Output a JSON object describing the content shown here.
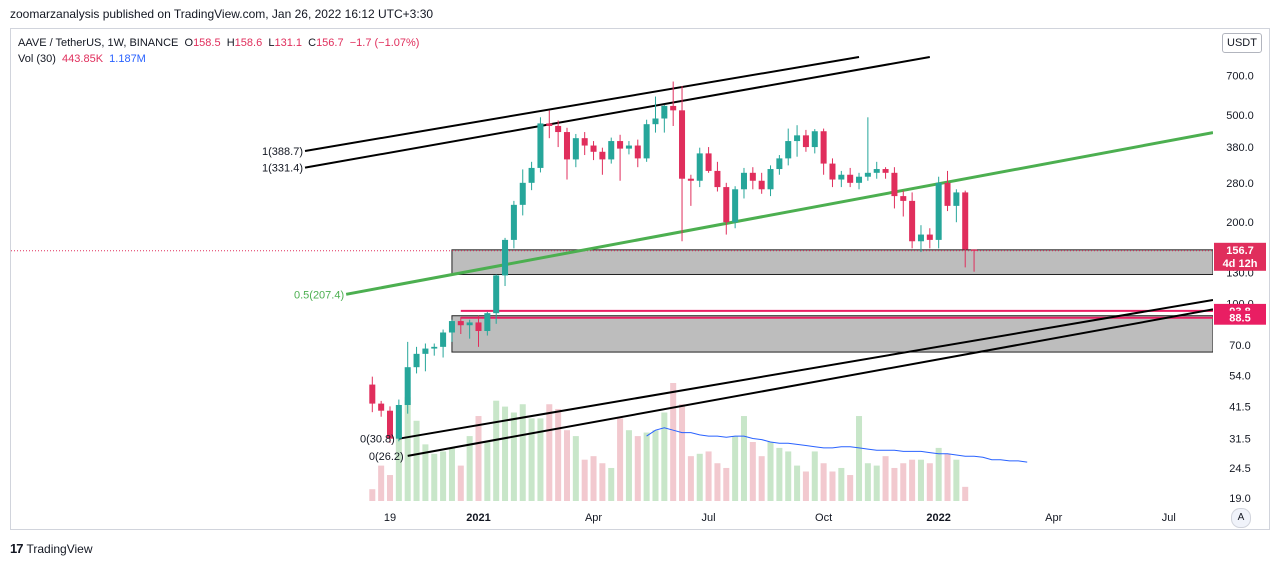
{
  "header": {
    "published": "zoomarzanalysis published on TradingView.com, Jan 26, 2022 16:12 UTC+3:30"
  },
  "legend": {
    "symbol": "AAVE / TetherUS, 1W, BINANCE",
    "open_label": "O",
    "open": "158.5",
    "high_label": "H",
    "high": "158.6",
    "low_label": "L",
    "low": "131.1",
    "close_label": "C",
    "close": "156.7",
    "change": "−1.7 (−1.07%)",
    "vol_label": "Vol (30)",
    "vol": "443.85K",
    "vol_ma": "1.187M"
  },
  "currency_badge": "USDT",
  "auto_button": "A",
  "footer": {
    "brand": "TradingView",
    "logo_glyph": "17"
  },
  "colors": {
    "up": "#26a69a",
    "down": "#e02e5c",
    "vol_up": "#c8e6c9",
    "vol_down": "#f2c9cf",
    "trend": "#4caf50",
    "zone": "#b2b2b2",
    "level": "#e91e63",
    "vol_ma": "#2962ff"
  },
  "chart_data": {
    "type": "candlestick",
    "scale": "log",
    "ylim": [
      18.5,
      820
    ],
    "x_dates": [
      "2020-10-26",
      "2022-08-08"
    ],
    "x_ticks": [
      {
        "label": "19",
        "date": "2020-10-26"
      },
      {
        "label": "2021",
        "date": "2021-01-04"
      },
      {
        "label": "Apr",
        "date": "2021-04-05"
      },
      {
        "label": "Jul",
        "date": "2021-07-05"
      },
      {
        "label": "Oct",
        "date": "2021-10-04"
      },
      {
        "label": "2022",
        "date": "2022-01-03"
      },
      {
        "label": "Apr",
        "date": "2022-04-04"
      },
      {
        "label": "Jul",
        "date": "2022-07-04"
      }
    ],
    "y_ticks": [
      "700.0",
      "500.0",
      "380.0",
      "280.0",
      "200.0",
      "130.0",
      "100.0",
      "70.0",
      "54.0",
      "41.5",
      "31.5",
      "24.5",
      "19.0"
    ],
    "ohlc": [
      {
        "date": "2020-10-12",
        "o": 50.0,
        "h": 53.5,
        "l": 39.5,
        "c": 42.5
      },
      {
        "date": "2020-10-19",
        "o": 42.5,
        "h": 43.5,
        "l": 38.0,
        "c": 40.0
      },
      {
        "date": "2020-10-26",
        "o": 40.0,
        "h": 41.5,
        "l": 30.4,
        "c": 31.5
      },
      {
        "date": "2020-11-02",
        "o": 31.5,
        "h": 44.0,
        "l": 30.8,
        "c": 42.0
      },
      {
        "date": "2020-11-09",
        "o": 42.0,
        "h": 72.0,
        "l": 39.0,
        "c": 58.0
      },
      {
        "date": "2020-11-16",
        "o": 58.0,
        "h": 69.0,
        "l": 55.0,
        "c": 65.0
      },
      {
        "date": "2020-11-23",
        "o": 65.0,
        "h": 71.0,
        "l": 56.0,
        "c": 68.0
      },
      {
        "date": "2020-11-30",
        "o": 68.0,
        "h": 71.0,
        "l": 64.0,
        "c": 69.0
      },
      {
        "date": "2020-12-07",
        "o": 69.0,
        "h": 80.0,
        "l": 63.0,
        "c": 78.0
      },
      {
        "date": "2020-12-14",
        "o": 78.0,
        "h": 87.0,
        "l": 72.0,
        "c": 86.0
      },
      {
        "date": "2020-12-21",
        "o": 86.0,
        "h": 89.0,
        "l": 77.0,
        "c": 83.0
      },
      {
        "date": "2020-12-28",
        "o": 83.0,
        "h": 87.0,
        "l": 74.0,
        "c": 85.0
      },
      {
        "date": "2021-01-04",
        "o": 85.0,
        "h": 90.0,
        "l": 69.0,
        "c": 79.0
      },
      {
        "date": "2021-01-11",
        "o": 79.0,
        "h": 93.0,
        "l": 76.0,
        "c": 92.0
      },
      {
        "date": "2021-01-18",
        "o": 92.0,
        "h": 128.0,
        "l": 84.0,
        "c": 127.0
      },
      {
        "date": "2021-01-25",
        "o": 127.0,
        "h": 175.0,
        "l": 116.0,
        "c": 172.0
      },
      {
        "date": "2021-02-01",
        "o": 172.0,
        "h": 240.0,
        "l": 160.0,
        "c": 232.0
      },
      {
        "date": "2021-02-08",
        "o": 232.0,
        "h": 314.0,
        "l": 212.0,
        "c": 280.0
      },
      {
        "date": "2021-02-15",
        "o": 280.0,
        "h": 335.0,
        "l": 263.0,
        "c": 318.0
      },
      {
        "date": "2021-02-22",
        "o": 318.0,
        "h": 490.0,
        "l": 306.0,
        "c": 465.0
      },
      {
        "date": "2021-03-01",
        "o": 465.0,
        "h": 520.0,
        "l": 410.0,
        "c": 455.0
      },
      {
        "date": "2021-03-08",
        "o": 455.0,
        "h": 477.0,
        "l": 380.0,
        "c": 432.0
      },
      {
        "date": "2021-03-15",
        "o": 432.0,
        "h": 448.0,
        "l": 288.0,
        "c": 342.0
      },
      {
        "date": "2021-03-22",
        "o": 342.0,
        "h": 425.0,
        "l": 320.0,
        "c": 410.0
      },
      {
        "date": "2021-03-29",
        "o": 410.0,
        "h": 432.0,
        "l": 355.0,
        "c": 385.0
      },
      {
        "date": "2021-04-05",
        "o": 385.0,
        "h": 400.0,
        "l": 340.0,
        "c": 365.0
      },
      {
        "date": "2021-04-12",
        "o": 365.0,
        "h": 378.0,
        "l": 300.0,
        "c": 342.0
      },
      {
        "date": "2021-04-19",
        "o": 342.0,
        "h": 412.0,
        "l": 330.0,
        "c": 400.0
      },
      {
        "date": "2021-04-26",
        "o": 400.0,
        "h": 422.0,
        "l": 285.0,
        "c": 375.0
      },
      {
        "date": "2021-05-03",
        "o": 375.0,
        "h": 400.0,
        "l": 357.0,
        "c": 385.0
      },
      {
        "date": "2021-05-10",
        "o": 385.0,
        "h": 405.0,
        "l": 320.0,
        "c": 345.0
      },
      {
        "date": "2021-05-17",
        "o": 345.0,
        "h": 480.0,
        "l": 335.0,
        "c": 462.0
      },
      {
        "date": "2021-05-24",
        "o": 462.0,
        "h": 585.0,
        "l": 430.0,
        "c": 485.0
      },
      {
        "date": "2021-05-31",
        "o": 485.0,
        "h": 545.0,
        "l": 430.0,
        "c": 540.0
      },
      {
        "date": "2021-06-07",
        "o": 540.0,
        "h": 665.0,
        "l": 455.0,
        "c": 520.0
      },
      {
        "date": "2021-06-14",
        "o": 520.0,
        "h": 640.0,
        "l": 170.0,
        "c": 290.0
      },
      {
        "date": "2021-06-21",
        "o": 290.0,
        "h": 300.0,
        "l": 230.0,
        "c": 285.0
      },
      {
        "date": "2021-06-28",
        "o": 285.0,
        "h": 378.0,
        "l": 270.0,
        "c": 360.0
      },
      {
        "date": "2021-07-05",
        "o": 360.0,
        "h": 380.0,
        "l": 305.0,
        "c": 310.0
      },
      {
        "date": "2021-07-12",
        "o": 310.0,
        "h": 335.0,
        "l": 260.0,
        "c": 270.0
      },
      {
        "date": "2021-07-19",
        "o": 270.0,
        "h": 280.0,
        "l": 180.0,
        "c": 200.0
      },
      {
        "date": "2021-07-26",
        "o": 200.0,
        "h": 272.0,
        "l": 190.0,
        "c": 265.0
      },
      {
        "date": "2021-08-02",
        "o": 265.0,
        "h": 318.0,
        "l": 245.0,
        "c": 305.0
      },
      {
        "date": "2021-08-09",
        "o": 305.0,
        "h": 320.0,
        "l": 265.0,
        "c": 285.0
      },
      {
        "date": "2021-08-16",
        "o": 285.0,
        "h": 305.0,
        "l": 255.0,
        "c": 265.0
      },
      {
        "date": "2021-08-23",
        "o": 265.0,
        "h": 325.0,
        "l": 250.0,
        "c": 315.0
      },
      {
        "date": "2021-08-30",
        "o": 315.0,
        "h": 355.0,
        "l": 300.0,
        "c": 345.0
      },
      {
        "date": "2021-09-06",
        "o": 345.0,
        "h": 445.0,
        "l": 325.0,
        "c": 400.0
      },
      {
        "date": "2021-09-13",
        "o": 400.0,
        "h": 458.0,
        "l": 350.0,
        "c": 420.0
      },
      {
        "date": "2021-09-20",
        "o": 420.0,
        "h": 440.0,
        "l": 365.0,
        "c": 380.0
      },
      {
        "date": "2021-09-27",
        "o": 380.0,
        "h": 443.0,
        "l": 360.0,
        "c": 435.0
      },
      {
        "date": "2021-10-04",
        "o": 435.0,
        "h": 445.0,
        "l": 300.0,
        "c": 330.0
      },
      {
        "date": "2021-10-11",
        "o": 330.0,
        "h": 345.0,
        "l": 270.0,
        "c": 288.0
      },
      {
        "date": "2021-10-18",
        "o": 288.0,
        "h": 310.0,
        "l": 270.0,
        "c": 300.0
      },
      {
        "date": "2021-10-25",
        "o": 300.0,
        "h": 318.0,
        "l": 270.0,
        "c": 280.0
      },
      {
        "date": "2021-11-01",
        "o": 280.0,
        "h": 305.0,
        "l": 265.0,
        "c": 295.0
      },
      {
        "date": "2021-11-08",
        "o": 295.0,
        "h": 490.0,
        "l": 285.0,
        "c": 305.0
      },
      {
        "date": "2021-11-15",
        "o": 305.0,
        "h": 335.0,
        "l": 290.0,
        "c": 315.0
      },
      {
        "date": "2021-11-22",
        "o": 315.0,
        "h": 320.0,
        "l": 290.0,
        "c": 305.0
      },
      {
        "date": "2021-11-29",
        "o": 305.0,
        "h": 320.0,
        "l": 225.0,
        "c": 250.0
      },
      {
        "date": "2021-12-06",
        "o": 250.0,
        "h": 262.0,
        "l": 210.0,
        "c": 240.0
      },
      {
        "date": "2021-12-13",
        "o": 240.0,
        "h": 258.0,
        "l": 160.0,
        "c": 170.0
      },
      {
        "date": "2021-12-20",
        "o": 170.0,
        "h": 195.0,
        "l": 155.0,
        "c": 180.0
      },
      {
        "date": "2021-12-27",
        "o": 180.0,
        "h": 190.0,
        "l": 160.0,
        "c": 172.0
      },
      {
        "date": "2022-01-03",
        "o": 172.0,
        "h": 295.0,
        "l": 160.0,
        "c": 280.0
      },
      {
        "date": "2022-01-10",
        "o": 280.0,
        "h": 310.0,
        "l": 220.0,
        "c": 230.0
      },
      {
        "date": "2022-01-17",
        "o": 230.0,
        "h": 265.0,
        "l": 200.0,
        "c": 258.0
      },
      {
        "date": "2022-01-24",
        "o": 258.0,
        "h": 262.0,
        "l": 136.0,
        "c": 158.5
      },
      {
        "date": "2022-01-31",
        "o": 158.5,
        "h": 158.6,
        "l": 131.1,
        "c": 156.7
      }
    ],
    "volume_rel": [
      0.1,
      0.3,
      0.22,
      0.6,
      0.88,
      0.68,
      0.48,
      0.4,
      0.42,
      0.45,
      0.3,
      0.55,
      0.72,
      0.5,
      0.85,
      0.8,
      0.75,
      0.82,
      0.7,
      0.7,
      0.82,
      0.78,
      0.6,
      0.55,
      0.35,
      0.38,
      0.32,
      0.28,
      0.7,
      0.6,
      0.55,
      0.58,
      0.6,
      0.75,
      1.0,
      0.82,
      0.38,
      0.4,
      0.42,
      0.32,
      0.28,
      0.55,
      0.72,
      0.5,
      0.38,
      0.5,
      0.45,
      0.42,
      0.3,
      0.25,
      0.42,
      0.32,
      0.25,
      0.28,
      0.22,
      0.72,
      0.32,
      0.3,
      0.38,
      0.28,
      0.32,
      0.35,
      0.35,
      0.32,
      0.45,
      0.4,
      0.35,
      0.12
    ],
    "vol_ma_rel": [
      0.55,
      0.6,
      0.62,
      0.6,
      0.58,
      0.58,
      0.56,
      0.55,
      0.55,
      0.54,
      0.55,
      0.55,
      0.53,
      0.52,
      0.5,
      0.49,
      0.49,
      0.48,
      0.47,
      0.46,
      0.45,
      0.45,
      0.46,
      0.46,
      0.45,
      0.44,
      0.43,
      0.43,
      0.43,
      0.42,
      0.42,
      0.42,
      0.41,
      0.4,
      0.4,
      0.39,
      0.38,
      0.38,
      0.37,
      0.35,
      0.35,
      0.34,
      0.34,
      0.33
    ],
    "vol_ma_start": "2021-05-17",
    "zones": [
      {
        "from": 128,
        "to": 158,
        "start": "2020-12-14"
      },
      {
        "from": 66,
        "to": 90,
        "start": "2020-12-14"
      }
    ],
    "level_lines": [
      {
        "price": 93.8,
        "label": "93.8",
        "start": "2020-12-21"
      },
      {
        "price": 88.5,
        "label": "88.5",
        "start": "2020-12-21"
      }
    ],
    "price_line": {
      "price": 156.7,
      "label": "156.7",
      "countdown": "4d 12h"
    },
    "trendline_green": {
      "points": [
        {
          "date": "2020-10-19",
          "price": 109
        },
        {
          "date": "2022-08-08",
          "price": 430
        }
      ],
      "label": "0.5(207.4)"
    },
    "channels": [
      {
        "points": [
          {
            "date": "2020-09-07",
            "price": 380
          },
          {
            "date": "2021-11-01",
            "price": 820
          }
        ],
        "label": "1(388.7)"
      },
      {
        "points": [
          {
            "date": "2020-09-07",
            "price": 330
          },
          {
            "date": "2021-12-27",
            "price": 820
          }
        ],
        "label": "1(331.4)"
      },
      {
        "points": [
          {
            "date": "2020-11-02",
            "price": 31.5
          },
          {
            "date": "2022-08-08",
            "price": 103
          }
        ],
        "label": "0(30.8)"
      },
      {
        "points": [
          {
            "date": "2020-11-09",
            "price": 27.2
          },
          {
            "date": "2022-08-08",
            "price": 95
          }
        ],
        "label": "0(26.2)"
      }
    ]
  }
}
